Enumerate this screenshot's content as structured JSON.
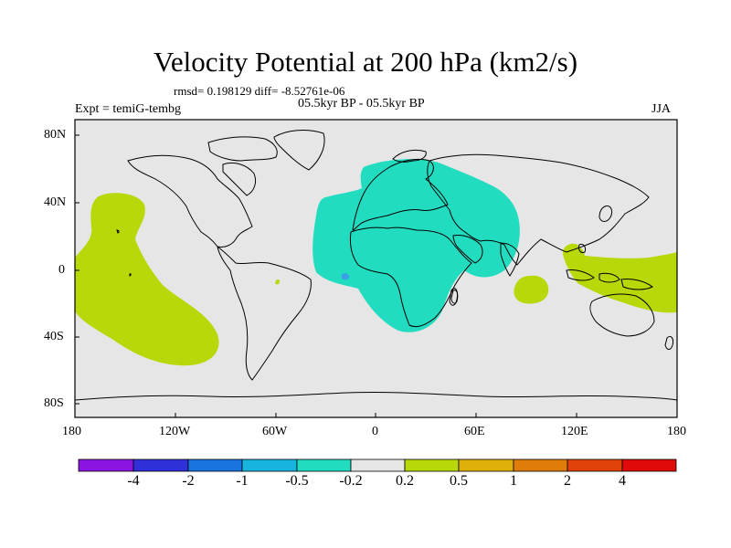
{
  "title": "Velocity Potential at 200 hPa (km2/s)",
  "stats": "rmsd= 0.198129 diff= -8.52761e-06",
  "experiment": "Expt = temiG-tembg",
  "period": "05.5kyr BP - 05.5kyr BP",
  "season": "JJA",
  "map": {
    "background_color": "#e6e6e6",
    "x_ticks": [
      "180",
      "120W",
      "60W",
      "0",
      "60E",
      "120E",
      "180"
    ],
    "y_ticks": [
      "80N",
      "40N",
      "0",
      "40S",
      "80S"
    ]
  },
  "colorbar": {
    "colors": [
      "#8b14e0",
      "#3030d8",
      "#1a74e0",
      "#18b4e0",
      "#22dcc0",
      "#e6e6e6",
      "#b8d80a",
      "#e0b00a",
      "#e07c0a",
      "#e0420a",
      "#e00a0a"
    ],
    "labels": [
      "-4",
      "-2",
      "-1",
      "-0.5",
      "-0.2",
      "0.2",
      "0.5",
      "1",
      "2",
      "4"
    ]
  },
  "regions": [
    {
      "name": "Africa-Europe negative anomaly",
      "level": "-0.5 to -0.2",
      "color": "#22dcc0"
    },
    {
      "name": "Eastern Pacific positive anomaly",
      "level": "0.2 to 0.5",
      "color": "#b8d80a"
    },
    {
      "name": "Indian Ocean positive anomaly",
      "level": "0.2 to 0.5",
      "color": "#b8d80a"
    },
    {
      "name": "Maritime continent positive anomaly",
      "level": "0.2 to 0.5",
      "color": "#b8d80a"
    }
  ]
}
